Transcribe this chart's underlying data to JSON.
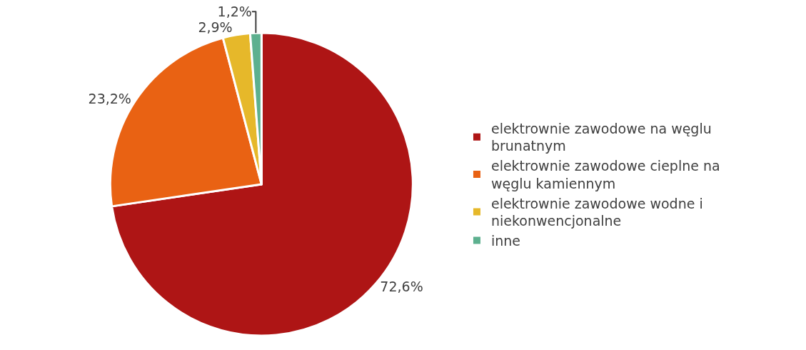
{
  "chart_data": {
    "type": "pie",
    "categories": [
      "elektrownie zawodowe na węglu brunatnym",
      "elektrownie zawodowe cieplne na węglu kamiennym",
      "elektrownie zawodowe wodne i niekonwencjonalne",
      "inne"
    ],
    "values": [
      72.6,
      23.2,
      2.9,
      1.2
    ],
    "colors": [
      "#ae1515",
      "#e96213",
      "#e6b82a",
      "#5db08f"
    ],
    "value_labels": [
      "72,6%",
      "23,2%",
      "2,9%",
      "1,2%"
    ],
    "legend": "right"
  }
}
